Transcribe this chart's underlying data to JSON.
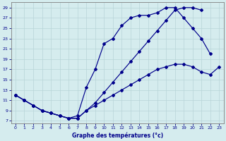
{
  "xlabel": "Graphe des températures (°c)",
  "background_color": "#d5ecee",
  "line_color": "#00008b",
  "grid_color": "#b8d4d8",
  "xlim": [
    -0.5,
    23.5
  ],
  "ylim": [
    6.5,
    30
  ],
  "xticks": [
    0,
    1,
    2,
    3,
    4,
    5,
    6,
    7,
    8,
    9,
    10,
    11,
    12,
    13,
    14,
    15,
    16,
    17,
    18,
    19,
    20,
    21,
    22,
    23
  ],
  "yticks": [
    7,
    9,
    11,
    13,
    15,
    17,
    19,
    21,
    23,
    25,
    27,
    29
  ],
  "series1_x": [
    0,
    1,
    2,
    3,
    4,
    5,
    6,
    7,
    8,
    9,
    10,
    11,
    12,
    13,
    14,
    15,
    16,
    17,
    18,
    19,
    20,
    21,
    22,
    23
  ],
  "series1_y": [
    12,
    11,
    10,
    9,
    8.5,
    8,
    7.5,
    7.5,
    9,
    10,
    11,
    12,
    13,
    14,
    15,
    16,
    17,
    17.5,
    18,
    18,
    17.5,
    16.5,
    16,
    17.5
  ],
  "series2_x": [
    0,
    1,
    2,
    3,
    4,
    5,
    6,
    7,
    8,
    9,
    10,
    11,
    12,
    13,
    14,
    15,
    16,
    17,
    18,
    19,
    20,
    21,
    22
  ],
  "series2_y": [
    12,
    11,
    10,
    9,
    8.5,
    8,
    7.5,
    8,
    13.5,
    17,
    22,
    23,
    25.5,
    27,
    27.5,
    27.5,
    28,
    29,
    29,
    27,
    25,
    23,
    20
  ],
  "series3_x": [
    0,
    1,
    2,
    3,
    4,
    5,
    6,
    7,
    8,
    9,
    10,
    11,
    12,
    13,
    14,
    15,
    16,
    17,
    18,
    19,
    20,
    21
  ],
  "series3_y": [
    12,
    11,
    10,
    9,
    8.5,
    8,
    7.5,
    7.5,
    9,
    10.5,
    12.5,
    14.5,
    16.5,
    18.5,
    20.5,
    22.5,
    24.5,
    26.5,
    28.5,
    29,
    29,
    28.5
  ]
}
